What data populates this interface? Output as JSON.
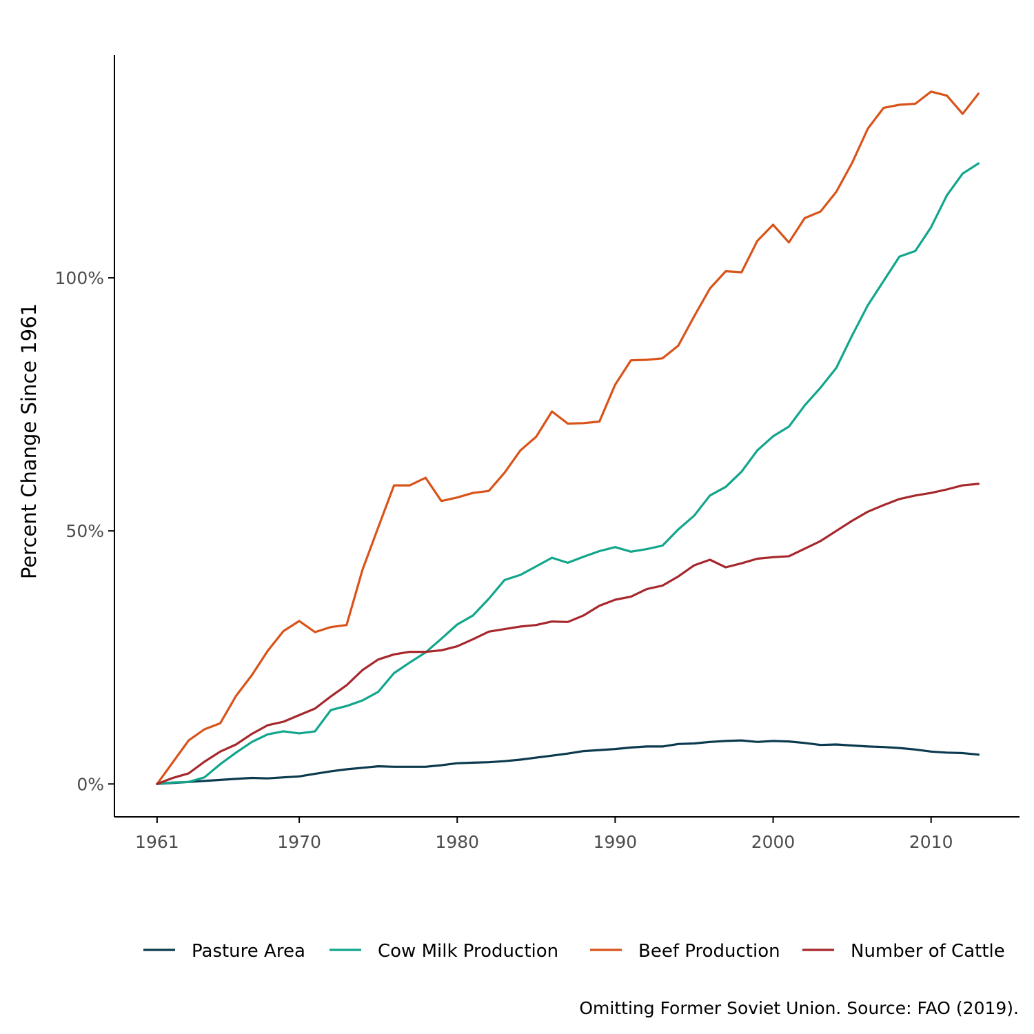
{
  "chart_data": {
    "type": "line",
    "ylabel": "Percent Change Since 1961",
    "xlabel": "",
    "xlim": [
      1958.3,
      2015.6
    ],
    "ylim": [
      -6.5,
      144
    ],
    "x_ticks": [
      1961,
      1970,
      1980,
      1990,
      2000,
      2010
    ],
    "x_tick_labels": [
      "1961",
      "1970",
      "1980",
      "1990",
      "2000",
      "2010"
    ],
    "y_ticks": [
      0,
      50,
      100
    ],
    "y_tick_labels": [
      "0%",
      "50%",
      "100%"
    ],
    "grid": false,
    "legend_position": "bottom",
    "caption": "Omitting Former Soviet Union. Source: FAO (2019).",
    "x": [
      1961,
      1962,
      1963,
      1964,
      1965,
      1966,
      1967,
      1968,
      1969,
      1970,
      1971,
      1972,
      1973,
      1974,
      1975,
      1976,
      1977,
      1978,
      1979,
      1980,
      1981,
      1982,
      1983,
      1984,
      1985,
      1986,
      1987,
      1988,
      1989,
      1990,
      1991,
      1992,
      1993,
      1994,
      1995,
      1996,
      1997,
      1998,
      1999,
      2000,
      2001,
      2002,
      2003,
      2004,
      2005,
      2006,
      2007,
      2008,
      2009,
      2010,
      2011,
      2012,
      2013
    ],
    "series": [
      {
        "name": "Pasture Area",
        "color": "#0b3a4e",
        "values": [
          0,
          0.2,
          0.4,
          0.6,
          0.8,
          1.0,
          1.2,
          1.1,
          1.3,
          1.5,
          2.0,
          2.5,
          2.9,
          3.2,
          3.5,
          3.4,
          3.4,
          3.4,
          3.7,
          4.1,
          4.2,
          4.3,
          4.5,
          4.8,
          5.2,
          5.6,
          6.0,
          6.5,
          6.7,
          6.9,
          7.2,
          7.4,
          7.4,
          7.9,
          8.0,
          8.3,
          8.5,
          8.6,
          8.3,
          8.5,
          8.4,
          8.1,
          7.7,
          7.8,
          7.6,
          7.4,
          7.3,
          7.1,
          6.8,
          6.4,
          6.2,
          6.1,
          5.8
        ]
      },
      {
        "name": "Cow Milk Production",
        "color": "#11a58c",
        "values": [
          0,
          0.3,
          0.4,
          1.3,
          3.9,
          6.2,
          8.3,
          9.8,
          10.4,
          10.0,
          10.4,
          14.6,
          15.4,
          16.5,
          18.2,
          21.9,
          24.0,
          26.0,
          28.7,
          31.5,
          33.3,
          36.6,
          40.3,
          41.3,
          43.0,
          44.7,
          43.7,
          44.9,
          46.0,
          46.8,
          45.9,
          46.4,
          47.1,
          50.3,
          53.0,
          57.0,
          58.7,
          61.7,
          65.9,
          68.7,
          70.6,
          74.8,
          78.3,
          82.2,
          88.6,
          94.6,
          99.4,
          104.2,
          105.3,
          110.0,
          116.3,
          120.6,
          122.6
        ]
      },
      {
        "name": "Beef Production",
        "color": "#d95319",
        "values": [
          0,
          4.3,
          8.6,
          10.8,
          12.0,
          17.4,
          21.5,
          26.3,
          30.2,
          32.2,
          30.0,
          31.0,
          31.4,
          42.3,
          50.7,
          59.0,
          59.0,
          60.5,
          55.9,
          56.6,
          57.5,
          57.9,
          61.5,
          65.9,
          68.6,
          73.6,
          71.2,
          71.3,
          71.6,
          78.9,
          83.7,
          83.8,
          84.1,
          86.6,
          92.4,
          97.9,
          101.3,
          101.1,
          107.3,
          110.5,
          107.0,
          111.8,
          113.1,
          117.0,
          122.7,
          129.5,
          133.6,
          134.2,
          134.4,
          136.8,
          136.0,
          132.4,
          136.4
        ]
      },
      {
        "name": "Number of Cattle",
        "color": "#a6272c",
        "values": [
          0,
          1.2,
          2.1,
          4.4,
          6.4,
          7.8,
          9.9,
          11.6,
          12.3,
          13.6,
          14.9,
          17.3,
          19.5,
          22.5,
          24.6,
          25.6,
          26.1,
          26.1,
          26.4,
          27.2,
          28.6,
          30.1,
          30.6,
          31.1,
          31.4,
          32.1,
          32.0,
          33.3,
          35.2,
          36.4,
          37.0,
          38.5,
          39.2,
          41.0,
          43.2,
          44.3,
          42.8,
          43.6,
          44.5,
          44.8,
          45.0,
          46.5,
          48.0,
          50.0,
          52.0,
          53.8,
          55.1,
          56.3,
          57.0,
          57.5,
          58.2,
          59.0,
          59.3
        ]
      }
    ]
  }
}
